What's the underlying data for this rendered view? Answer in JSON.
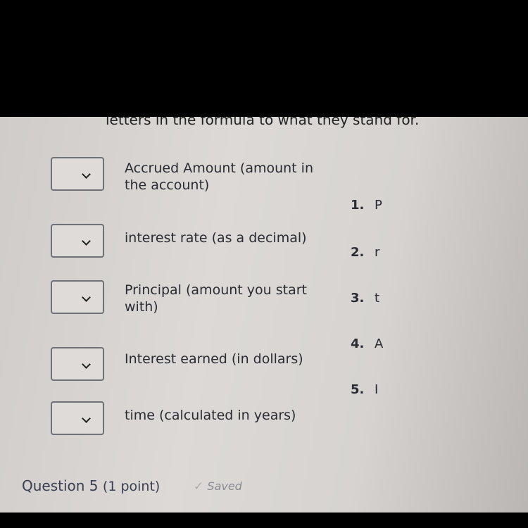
{
  "instructions": "letters in the formula to what they stand for.",
  "terms": [
    {
      "label": "Accrued Amount (amount in the account)",
      "selected": ""
    },
    {
      "label": "interest rate (as a decimal)",
      "selected": ""
    },
    {
      "label": "Principal (amount you start with)",
      "selected": ""
    },
    {
      "label": "Interest earned (in dollars)",
      "selected": ""
    },
    {
      "label": "time (calculated in years)",
      "selected": ""
    }
  ],
  "options": [
    {
      "num": "1.",
      "letter": "P"
    },
    {
      "num": "2.",
      "letter": "r"
    },
    {
      "num": "3.",
      "letter": "t"
    },
    {
      "num": "4.",
      "letter": "A"
    },
    {
      "num": "5.",
      "letter": "I"
    }
  ],
  "next_question": {
    "title": "Question 5",
    "points": "(1 point)",
    "status": "Saved",
    "status_icon": "check-icon"
  }
}
